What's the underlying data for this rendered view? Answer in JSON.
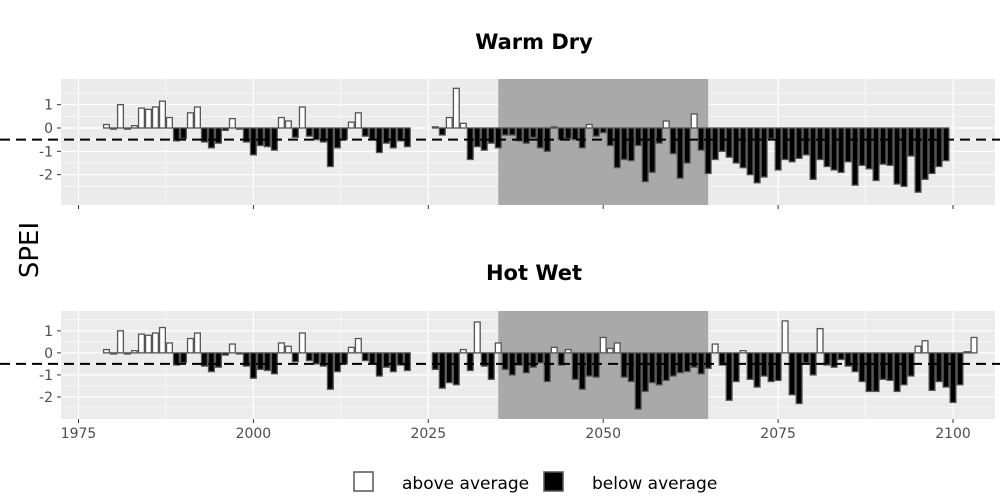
{
  "chart_data": {
    "type": "bar",
    "ylabel": "SPEI",
    "xticks": [
      1975,
      2000,
      2025,
      2050,
      2075,
      2100
    ],
    "yticks": [
      1,
      0,
      -1,
      -2
    ],
    "xlim": [
      1972.5,
      2106
    ],
    "threshold": -0.5,
    "shaded_region": [
      2035,
      2065
    ],
    "legend": {
      "position": "bottom",
      "items": [
        {
          "label": "above average",
          "color": "#ffffff"
        },
        {
          "label": "below average",
          "color": "#000000"
        }
      ]
    },
    "colors": {
      "panel_bg": "#ebebeb",
      "grid": "#ffffff",
      "shade": "#a9a9a9",
      "bar_outline": "#555555",
      "above": "#ffffff",
      "below": "#000000"
    },
    "panels": [
      {
        "title": "Warm Dry",
        "ylim": [
          -3.3,
          2.1
        ],
        "series": [
          {
            "start_year": 1979,
            "values": [
              0.15,
              -0.05,
              1.0,
              -0.05,
              0.1,
              0.85,
              0.8,
              0.9,
              1.15,
              0.45,
              -0.55,
              -0.45,
              0.65,
              0.9,
              -0.6,
              -0.85,
              -0.65,
              -0.1,
              0.4,
              -0.05,
              -0.6,
              -1.15,
              -0.75,
              -0.8,
              -0.95,
              0.45,
              0.3,
              -0.4,
              0.9,
              -0.35,
              -0.5,
              -0.6,
              -1.65,
              -0.85,
              -0.5,
              0.25,
              0.65,
              -0.35,
              -0.5,
              -1.05,
              -0.65,
              -0.85,
              -0.55,
              -0.8
            ]
          },
          {
            "start_year": 2026,
            "values": [
              0.05,
              -0.3,
              0.45,
              1.7,
              0.2,
              -1.35,
              -0.8,
              -0.95,
              -0.65,
              -0.85,
              -0.3,
              -0.3,
              -0.55,
              -0.65,
              -0.4,
              -0.85,
              -1.0,
              0.05,
              -0.5,
              -0.45,
              -0.5,
              -0.85,
              0.15,
              -0.35,
              -0.2,
              -0.75,
              -1.7,
              -1.35,
              -1.4,
              -0.75,
              -2.3,
              -1.9,
              -0.65,
              0.3,
              -1.1,
              -2.15,
              -1.5,
              0.6,
              -0.95,
              -1.95,
              -1.35,
              -1.0,
              -1.25,
              -1.5,
              -1.7,
              -2.0,
              -2.35,
              -2.1,
              -0.45,
              -1.8,
              -1.35,
              -1.45,
              -1.3,
              -1.15,
              -2.2,
              -1.35,
              -1.65,
              -1.8,
              -1.9,
              -1.45,
              -2.45,
              -1.6,
              -1.75,
              -2.25,
              -1.55,
              -1.6,
              -2.4,
              -2.5,
              -1.2,
              -2.75,
              -2.2,
              -1.95,
              -1.65,
              -1.4
            ]
          }
        ]
      },
      {
        "title": "Hot Wet",
        "ylim": [
          -3.0,
          1.9
        ],
        "series": [
          {
            "start_year": 1979,
            "values": [
              0.15,
              -0.05,
              1.0,
              -0.05,
              0.1,
              0.85,
              0.8,
              0.9,
              1.15,
              0.45,
              -0.55,
              -0.45,
              0.65,
              0.9,
              -0.6,
              -0.85,
              -0.65,
              -0.1,
              0.4,
              -0.05,
              -0.6,
              -1.15,
              -0.75,
              -0.8,
              -0.95,
              0.45,
              0.3,
              -0.4,
              0.9,
              -0.35,
              -0.5,
              -0.6,
              -1.65,
              -0.85,
              -0.5,
              0.25,
              0.65,
              -0.35,
              -0.5,
              -1.05,
              -0.65,
              -0.85,
              -0.55,
              -0.8
            ]
          },
          {
            "start_year": 2026,
            "values": [
              -0.75,
              -1.6,
              -1.35,
              -1.45,
              0.15,
              -0.8,
              1.4,
              -0.6,
              -1.2,
              0.45,
              -0.75,
              -1.0,
              -0.55,
              -0.9,
              -0.65,
              -0.45,
              -1.3,
              0.25,
              -0.55,
              0.15,
              -1.2,
              -1.65,
              -1.05,
              -1.1,
              0.7,
              0.2,
              0.45,
              -1.1,
              -1.3,
              -2.55,
              -1.75,
              -1.35,
              -1.45,
              -1.25,
              -1.05,
              -0.9,
              -0.85,
              -0.65,
              -0.95,
              -0.7,
              0.4,
              -0.55,
              -2.15,
              -1.3,
              0.1,
              -1.2,
              -1.55,
              -1.05,
              -1.3,
              -1.25,
              1.45,
              -1.9,
              -2.3,
              -0.45,
              -1.0,
              1.1,
              -0.55,
              -0.65,
              -0.3,
              -0.6,
              -0.85,
              -1.3,
              -1.75,
              -1.75,
              -1.2,
              -1.25,
              -1.75,
              -1.45,
              -1.05,
              0.3,
              0.55,
              -1.7,
              -1.3,
              -1.55,
              -2.25,
              -1.45,
              0.05,
              0.7
            ]
          }
        ]
      }
    ]
  }
}
